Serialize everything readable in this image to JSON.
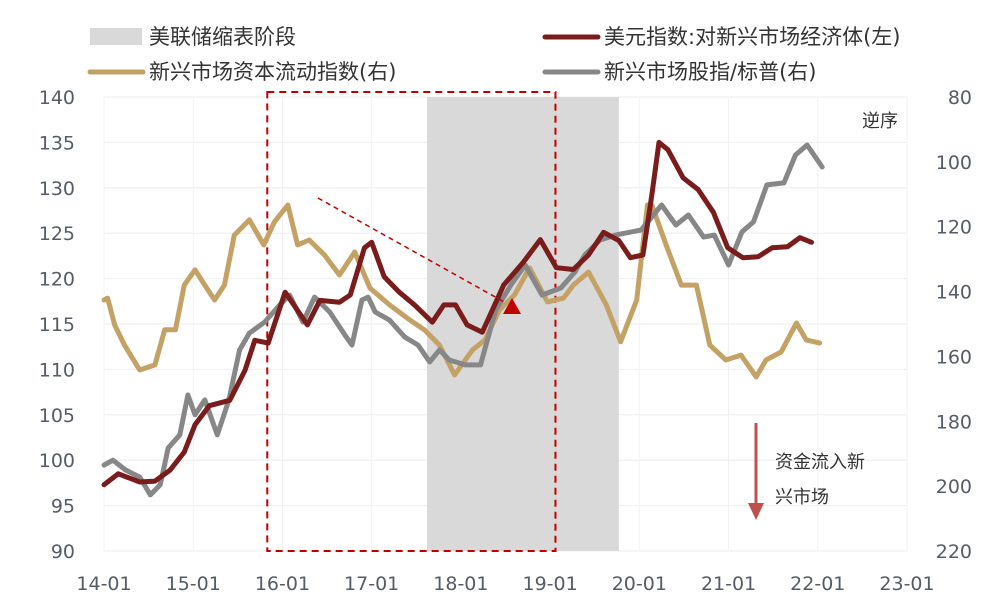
{
  "chart_data": {
    "type": "line",
    "legend": {
      "position": "top",
      "items": [
        "美联储缩表阶段",
        "美元指数:对新兴市场经济体(左)",
        "新兴市场资本流动指数(右)",
        "新兴市场股指/标普(右)"
      ]
    },
    "x_ticks": [
      "14-01",
      "15-01",
      "16-01",
      "17-01",
      "18-01",
      "19-01",
      "20-01",
      "21-01",
      "22-01",
      "23-01"
    ],
    "xlim": [
      2014.0,
      2023.0
    ],
    "left_axis": {
      "ylim": [
        90,
        140
      ],
      "ticks": [
        "140",
        "135",
        "130",
        "125",
        "120",
        "115",
        "110",
        "105",
        "100",
        "95",
        "90"
      ]
    },
    "right_axis": {
      "ylim": [
        80,
        220
      ],
      "inverted": true,
      "label": "逆序",
      "ticks": [
        "80",
        "100",
        "120",
        "140",
        "160",
        "180",
        "200",
        "220"
      ]
    },
    "grid": true,
    "shaded_period": {
      "label": "美联储缩表阶段",
      "start": 2017.62,
      "end": 2019.77,
      "color": "#d9d9d9"
    },
    "highlight_box": {
      "start": 2015.83,
      "end": 2019.06,
      "color": "#c00000"
    },
    "annotations": {
      "reverse_order": "逆序",
      "flow_note_line1": "资金流入新",
      "flow_note_line2": "兴市场"
    },
    "series": [
      {
        "name": "美元指数:对新兴市场经济体(左)",
        "axis": "left",
        "color": "#7b1c1c",
        "x": [
          2014.0,
          2014.16,
          2014.4,
          2014.57,
          2014.74,
          2014.9,
          2015.02,
          2015.18,
          2015.41,
          2015.58,
          2015.69,
          2015.84,
          2016.03,
          2016.28,
          2016.42,
          2016.64,
          2016.76,
          2016.92,
          2017.0,
          2017.14,
          2017.31,
          2017.48,
          2017.68,
          2017.81,
          2017.94,
          2018.07,
          2018.24,
          2018.48,
          2018.7,
          2018.89,
          2019.07,
          2019.26,
          2019.43,
          2019.6,
          2019.77,
          2019.9,
          2020.04,
          2020.14,
          2020.22,
          2020.32,
          2020.49,
          2020.66,
          2020.83,
          2020.99,
          2021.16,
          2021.33,
          2021.49,
          2021.66,
          2021.8,
          2021.93
        ],
        "values": [
          97.3,
          98.5,
          97.6,
          97.7,
          98.9,
          100.9,
          103.9,
          106.0,
          106.6,
          109.9,
          113.2,
          112.9,
          118.5,
          114.9,
          117.6,
          117.4,
          118.2,
          123.4,
          124.0,
          120.2,
          118.5,
          117.1,
          115.2,
          117.1,
          117.1,
          114.9,
          114.1,
          119.3,
          121.8,
          124.3,
          121.2,
          121.0,
          122.6,
          125.1,
          124.2,
          122.3,
          122.6,
          129.2,
          135.0,
          134.2,
          131.1,
          129.8,
          127.3,
          123.4,
          122.3,
          122.4,
          123.4,
          123.5,
          124.5,
          124.0
        ]
      },
      {
        "name": "新兴市场资本流动指数(右)",
        "axis": "right",
        "color": "#c4a265",
        "x": [
          2014.0,
          2014.04,
          2014.12,
          2014.23,
          2014.4,
          2014.57,
          2014.68,
          2014.8,
          2014.9,
          2015.02,
          2015.13,
          2015.24,
          2015.35,
          2015.46,
          2015.63,
          2015.79,
          2015.91,
          2016.06,
          2016.17,
          2016.3,
          2016.47,
          2016.64,
          2016.81,
          2016.98,
          2017.2,
          2017.43,
          2017.59,
          2017.76,
          2017.93,
          2018.13,
          2018.27,
          2018.43,
          2018.6,
          2018.77,
          2018.97,
          2019.15,
          2019.26,
          2019.43,
          2019.63,
          2019.79,
          2019.97,
          2020.09,
          2020.14,
          2020.3,
          2020.47,
          2020.64,
          2020.79,
          2020.97,
          2021.14,
          2021.31,
          2021.42,
          2021.59,
          2021.76,
          2021.87,
          2022.02
        ],
        "values": [
          142.6,
          142.0,
          150.3,
          156.5,
          164.2,
          162.6,
          151.8,
          151.8,
          138.0,
          133.3,
          138.0,
          142.6,
          138.0,
          122.6,
          117.9,
          125.6,
          118.5,
          113.3,
          125.6,
          124.1,
          128.7,
          134.9,
          127.8,
          138.9,
          144.1,
          148.8,
          151.8,
          156.5,
          165.7,
          158.0,
          154.9,
          145.7,
          141.1,
          132.7,
          143.2,
          142.0,
          138.0,
          134.0,
          144.1,
          155.5,
          142.6,
          113.3,
          113.3,
          125.6,
          138.0,
          138.0,
          156.5,
          161.1,
          159.6,
          166.3,
          161.1,
          158.6,
          149.7,
          154.9,
          155.9
        ]
      },
      {
        "name": "新兴市场股指/标普(右)",
        "axis": "right",
        "color": "#878787",
        "x": [
          2014.0,
          2014.1,
          2014.24,
          2014.4,
          2014.52,
          2014.63,
          2014.72,
          2014.85,
          2014.94,
          2015.02,
          2015.13,
          2015.27,
          2015.4,
          2015.52,
          2015.63,
          2015.8,
          2015.97,
          2016.08,
          2016.23,
          2016.36,
          2016.53,
          2016.7,
          2016.78,
          2016.89,
          2016.96,
          2017.04,
          2017.2,
          2017.37,
          2017.52,
          2017.65,
          2017.76,
          2017.87,
          2018.05,
          2018.22,
          2018.39,
          2018.56,
          2018.72,
          2018.91,
          2019.12,
          2019.28,
          2019.39,
          2019.56,
          2019.73,
          2020.02,
          2020.25,
          2020.41,
          2020.55,
          2020.72,
          2020.84,
          2021.0,
          2021.15,
          2021.28,
          2021.43,
          2021.62,
          2021.75,
          2021.88,
          2022.05
        ],
        "values": [
          193.5,
          192.0,
          195.0,
          197.2,
          202.7,
          199.6,
          188.2,
          184.2,
          171.9,
          178.0,
          173.4,
          184.2,
          173.4,
          158.0,
          152.8,
          149.4,
          144.1,
          141.1,
          149.4,
          141.7,
          146.3,
          153.4,
          156.5,
          142.6,
          141.7,
          146.3,
          148.8,
          154.0,
          156.5,
          161.7,
          158.0,
          161.1,
          162.6,
          162.6,
          145.7,
          138.0,
          131.8,
          141.1,
          138.9,
          133.9,
          128.7,
          124.1,
          122.6,
          121.0,
          113.3,
          119.5,
          116.4,
          123.2,
          122.6,
          131.8,
          121.6,
          118.5,
          107.1,
          106.5,
          97.9,
          94.8,
          101.6
        ]
      }
    ]
  }
}
